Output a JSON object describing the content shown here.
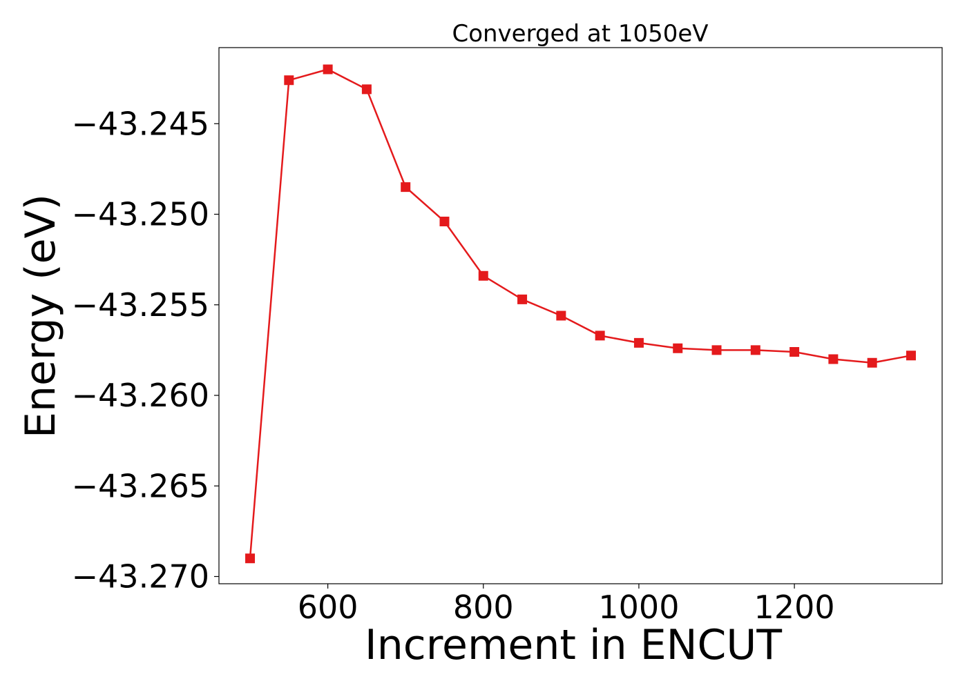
{
  "chart_data": {
    "type": "line",
    "title": "Converged at 1050eV",
    "xlabel": "Increment in ENCUT",
    "ylabel": "Energy (eV)",
    "xlim": [
      460,
      1390
    ],
    "ylim": [
      -43.2704,
      -43.2408
    ],
    "xticks": [
      600,
      800,
      1000,
      1200
    ],
    "xtick_labels": [
      "600",
      "800",
      "1000",
      "1200"
    ],
    "yticks": [
      -43.245,
      -43.25,
      -43.255,
      -43.26,
      -43.265,
      -43.27
    ],
    "ytick_labels": [
      "−43.245",
      "−43.250",
      "−43.255",
      "−43.260",
      "−43.265",
      "−43.270"
    ],
    "grid": false,
    "legend": "none",
    "series": [
      {
        "color": "#e41a1c",
        "marker": "square",
        "x": [
          500,
          550,
          600,
          650,
          700,
          750,
          800,
          850,
          900,
          950,
          1000,
          1050,
          1100,
          1150,
          1200,
          1250,
          1300,
          1350
        ],
        "y": [
          -43.269,
          -43.2426,
          -43.242,
          -43.2431,
          -43.2485,
          -43.2504,
          -43.2534,
          -43.2547,
          -43.2556,
          -43.2567,
          -43.2571,
          -43.2574,
          -43.2575,
          -43.2575,
          -43.2576,
          -43.258,
          -43.2582,
          -43.2578
        ]
      }
    ]
  }
}
